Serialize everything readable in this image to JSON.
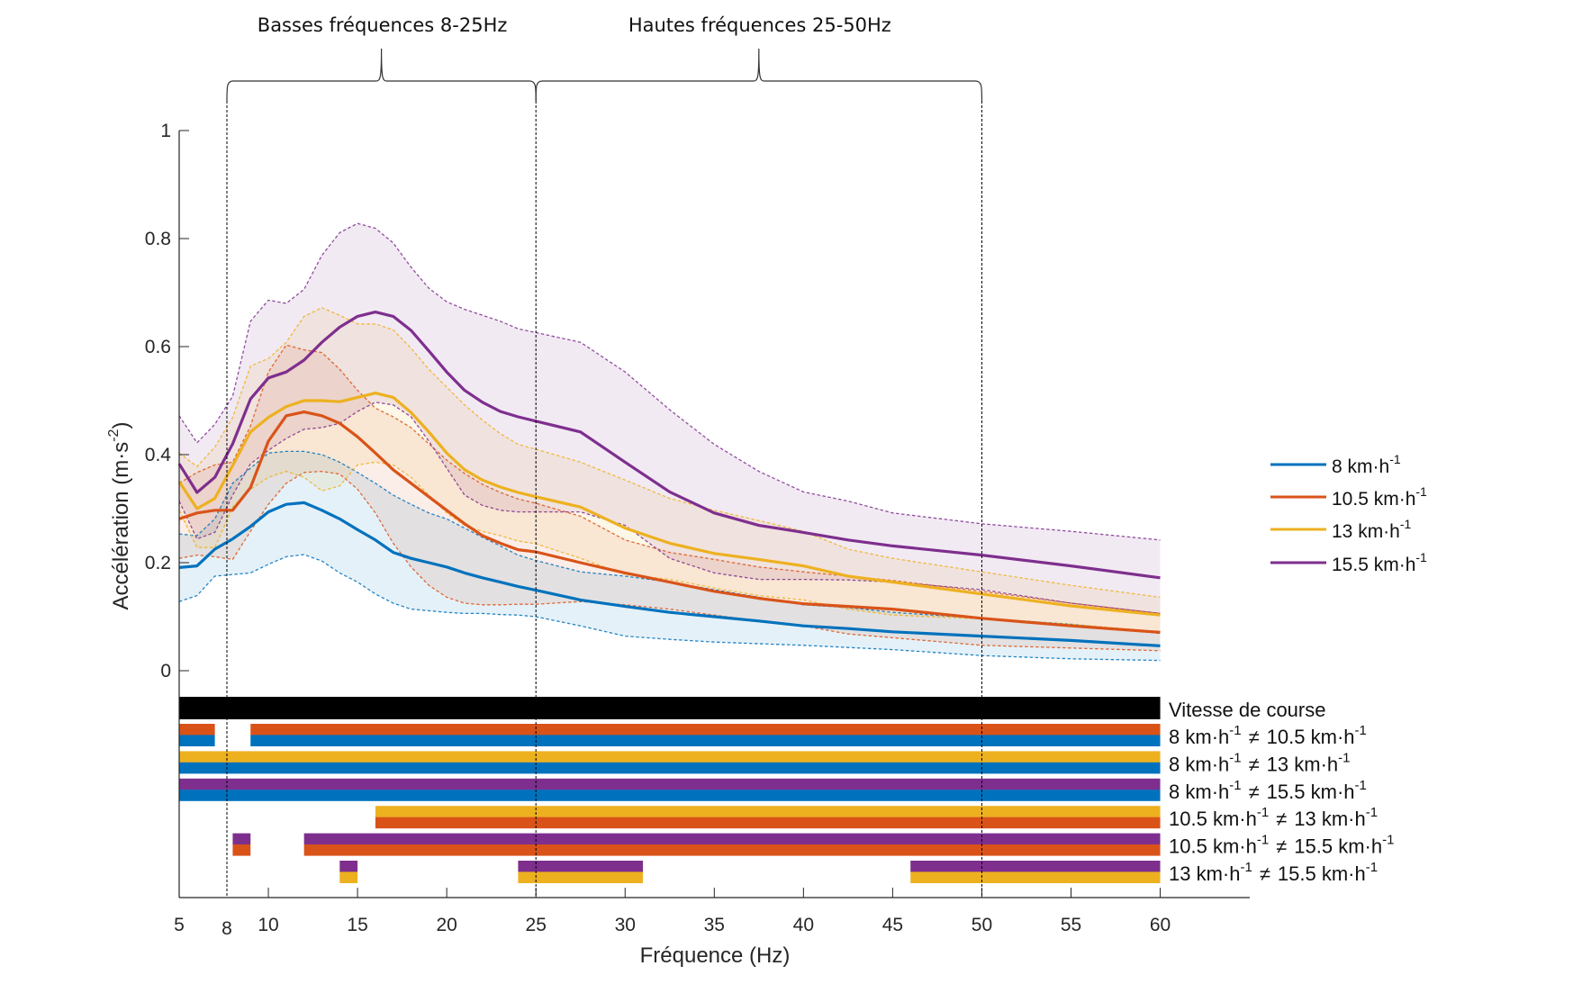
{
  "chart_data": {
    "type": "line",
    "title": "",
    "xlabel": "Fréquence (Hz)",
    "ylabel": {
      "text": "Accélération (m·s",
      "exp": "-2",
      "close": ")"
    },
    "xlim": [
      5,
      65
    ],
    "ylim": [
      0,
      1
    ],
    "x_ticks": [
      "5",
      "10",
      "15",
      "20",
      "25",
      "30",
      "35",
      "40",
      "45",
      "50",
      "55",
      "60"
    ],
    "x_tick_values": [
      5,
      10,
      15,
      20,
      25,
      30,
      35,
      40,
      45,
      50,
      55,
      60
    ],
    "extra_x_tick": {
      "label": "8",
      "value": 8
    },
    "y_ticks": [
      "0",
      "0.2",
      "0.4",
      "0.6",
      "0.8",
      "1"
    ],
    "y_tick_values": [
      0,
      0.2,
      0.4,
      0.6,
      0.8,
      1
    ],
    "grid": false,
    "legend_position": "right",
    "annotations": [
      {
        "text": "Basses fréquences 8-25Hz",
        "from": 8,
        "to": 25
      },
      {
        "text": "Hautes fréquences 25-50Hz",
        "from": 25,
        "to": 50
      }
    ],
    "x": [
      5,
      6,
      7,
      8,
      9,
      10,
      11,
      12,
      13,
      14,
      15,
      16,
      17,
      18,
      19,
      20,
      21,
      22,
      23,
      24,
      25,
      27.5,
      30,
      32.5,
      35,
      37.5,
      40,
      42.5,
      45,
      50,
      55,
      60
    ],
    "series": [
      {
        "name": {
          "value": "8",
          "unit": " km·h",
          "exp": "-1"
        },
        "color": "#0072BD",
        "mean": [
          0.191,
          0.194,
          0.225,
          0.244,
          0.267,
          0.294,
          0.308,
          0.311,
          0.297,
          0.281,
          0.261,
          0.242,
          0.219,
          0.208,
          0.2,
          0.192,
          0.181,
          0.172,
          0.164,
          0.156,
          0.149,
          0.131,
          0.119,
          0.108,
          0.1,
          0.092,
          0.083,
          0.078,
          0.072,
          0.064,
          0.056,
          0.046
        ],
        "upper": [
          0.253,
          0.25,
          0.281,
          0.347,
          0.375,
          0.403,
          0.406,
          0.406,
          0.4,
          0.386,
          0.367,
          0.347,
          0.325,
          0.308,
          0.292,
          0.281,
          0.264,
          0.247,
          0.231,
          0.214,
          0.204,
          0.183,
          0.175,
          0.164,
          0.15,
          0.136,
          0.122,
          0.117,
          0.108,
          0.097,
          0.086,
          0.069
        ],
        "lower": [
          0.128,
          0.139,
          0.175,
          0.178,
          0.181,
          0.197,
          0.211,
          0.215,
          0.203,
          0.181,
          0.164,
          0.142,
          0.125,
          0.114,
          0.111,
          0.108,
          0.106,
          0.106,
          0.104,
          0.103,
          0.1,
          0.083,
          0.064,
          0.058,
          0.053,
          0.05,
          0.047,
          0.043,
          0.039,
          0.028,
          0.022,
          0.019
        ]
      },
      {
        "name": {
          "value": "10.5",
          "unit": " km·h",
          "exp": "-1"
        },
        "color": "#D95319",
        "mean": [
          0.281,
          0.292,
          0.297,
          0.297,
          0.339,
          0.425,
          0.472,
          0.479,
          0.472,
          0.458,
          0.433,
          0.403,
          0.372,
          0.347,
          0.322,
          0.297,
          0.272,
          0.25,
          0.236,
          0.224,
          0.22,
          0.2,
          0.181,
          0.164,
          0.147,
          0.134,
          0.124,
          0.119,
          0.114,
          0.097,
          0.083,
          0.071
        ],
        "upper": [
          0.347,
          0.367,
          0.381,
          0.386,
          0.453,
          0.553,
          0.603,
          0.594,
          0.589,
          0.558,
          0.519,
          0.486,
          0.47,
          0.45,
          0.42,
          0.39,
          0.365,
          0.345,
          0.33,
          0.318,
          0.31,
          0.286,
          0.242,
          0.219,
          0.206,
          0.192,
          0.183,
          0.175,
          0.167,
          0.147,
          0.125,
          0.106
        ],
        "lower": [
          0.208,
          0.214,
          0.211,
          0.206,
          0.258,
          0.308,
          0.347,
          0.367,
          0.369,
          0.364,
          0.336,
          0.292,
          0.236,
          0.192,
          0.158,
          0.136,
          0.125,
          0.122,
          0.122,
          0.123,
          0.123,
          0.128,
          0.122,
          0.114,
          0.103,
          0.092,
          0.083,
          0.068,
          0.061,
          0.047,
          0.042,
          0.037
        ]
      },
      {
        "name": {
          "value": "13",
          "unit": " km·h",
          "exp": "-1"
        },
        "color": "#EDB120",
        "mean": [
          0.35,
          0.3,
          0.319,
          0.38,
          0.442,
          0.469,
          0.489,
          0.5,
          0.5,
          0.498,
          0.506,
          0.514,
          0.506,
          0.478,
          0.442,
          0.403,
          0.372,
          0.353,
          0.34,
          0.33,
          0.322,
          0.303,
          0.264,
          0.236,
          0.217,
          0.206,
          0.194,
          0.175,
          0.164,
          0.142,
          0.12,
          0.103
        ],
        "upper": [
          0.403,
          0.378,
          0.414,
          0.469,
          0.564,
          0.578,
          0.608,
          0.656,
          0.672,
          0.658,
          0.642,
          0.642,
          0.631,
          0.597,
          0.558,
          0.525,
          0.492,
          0.464,
          0.439,
          0.419,
          0.41,
          0.386,
          0.353,
          0.319,
          0.297,
          0.278,
          0.258,
          0.225,
          0.208,
          0.183,
          0.158,
          0.136
        ],
        "lower": [
          0.297,
          0.228,
          0.228,
          0.303,
          0.336,
          0.358,
          0.369,
          0.358,
          0.333,
          0.342,
          0.381,
          0.386,
          0.381,
          0.358,
          0.325,
          0.292,
          0.269,
          0.258,
          0.25,
          0.24,
          0.235,
          0.208,
          0.178,
          0.169,
          0.153,
          0.139,
          0.131,
          0.114,
          0.103,
          0.096,
          0.086,
          0.072
        ]
      },
      {
        "name": {
          "value": "15.5",
          "unit": " km·h",
          "exp": "-1"
        },
        "color": "#7E2F8E",
        "mean": [
          0.383,
          0.33,
          0.358,
          0.42,
          0.503,
          0.542,
          0.553,
          0.575,
          0.608,
          0.636,
          0.656,
          0.664,
          0.656,
          0.63,
          0.592,
          0.553,
          0.519,
          0.497,
          0.48,
          0.47,
          0.462,
          0.442,
          0.386,
          0.331,
          0.292,
          0.269,
          0.256,
          0.242,
          0.231,
          0.214,
          0.194,
          0.172
        ],
        "upper": [
          0.472,
          0.422,
          0.456,
          0.508,
          0.647,
          0.686,
          0.68,
          0.706,
          0.769,
          0.811,
          0.828,
          0.819,
          0.792,
          0.747,
          0.708,
          0.683,
          0.669,
          0.658,
          0.647,
          0.633,
          0.626,
          0.608,
          0.553,
          0.483,
          0.419,
          0.369,
          0.331,
          0.314,
          0.292,
          0.272,
          0.258,
          0.242
        ],
        "lower": [
          0.314,
          0.244,
          0.256,
          0.325,
          0.383,
          0.408,
          0.43,
          0.447,
          0.45,
          0.458,
          0.48,
          0.497,
          0.492,
          0.47,
          0.425,
          0.375,
          0.325,
          0.306,
          0.297,
          0.294,
          0.294,
          0.294,
          0.269,
          0.208,
          0.181,
          0.169,
          0.169,
          0.168,
          0.164,
          0.15,
          0.125,
          0.106
        ]
      }
    ],
    "significance": {
      "main_effect": {
        "label": "Vitesse de course",
        "color": "#000000",
        "intervals": [
          [
            5,
            60
          ]
        ]
      },
      "neq": "≠",
      "comparisons": [
        {
          "a": "8",
          "b": "10.5",
          "top_color": "#D95319",
          "bottom_color": "#0072BD",
          "intervals": [
            [
              5,
              7
            ],
            [
              9,
              60
            ]
          ]
        },
        {
          "a": "8",
          "b": "13",
          "top_color": "#EDB120",
          "bottom_color": "#0072BD",
          "intervals": [
            [
              5,
              60
            ]
          ]
        },
        {
          "a": "8",
          "b": "15.5",
          "top_color": "#7E2F8E",
          "bottom_color": "#0072BD",
          "intervals": [
            [
              5,
              60
            ]
          ]
        },
        {
          "a": "10.5",
          "b": "13",
          "top_color": "#EDB120",
          "bottom_color": "#D95319",
          "intervals": [
            [
              16,
              60
            ]
          ]
        },
        {
          "a": "10.5",
          "b": "15.5",
          "top_color": "#7E2F8E",
          "bottom_color": "#D95319",
          "intervals": [
            [
              8,
              9
            ],
            [
              12,
              60
            ]
          ]
        },
        {
          "a": "13",
          "b": "15.5",
          "top_color": "#7E2F8E",
          "bottom_color": "#EDB120",
          "intervals": [
            [
              14,
              15
            ],
            [
              24,
              31
            ],
            [
              46,
              60
            ]
          ]
        }
      ],
      "unit": " km·h",
      "exp": "-1"
    }
  }
}
